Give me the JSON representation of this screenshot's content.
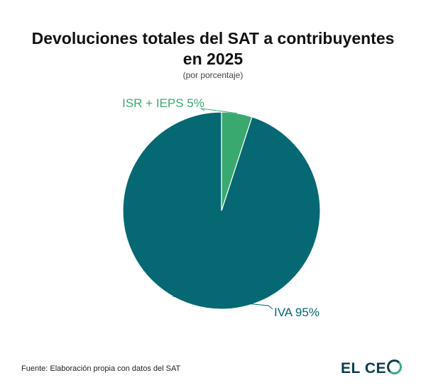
{
  "header": {
    "title_line1": "Devoluciones totales del SAT a contribuyentes",
    "title_line2": "en 2025",
    "subtitle": "(por porcentaje)"
  },
  "footer": {
    "source": "Fuente: Elaboración propia con datos del SAT",
    "logo_text": "EL CE"
  },
  "chart_data": {
    "type": "pie",
    "title": "Devoluciones totales del SAT a contribuyentes en 2025",
    "subtitle": "(por porcentaje)",
    "slices": [
      {
        "label": "IVA",
        "value": 95,
        "display": "IVA 95%",
        "color": "#066872"
      },
      {
        "label": "ISR + IEPS",
        "value": 5,
        "display": "ISR + IEPS 5%",
        "color": "#3aa96f"
      }
    ],
    "start_angle_deg": 0,
    "direction": "counterclockwise"
  }
}
